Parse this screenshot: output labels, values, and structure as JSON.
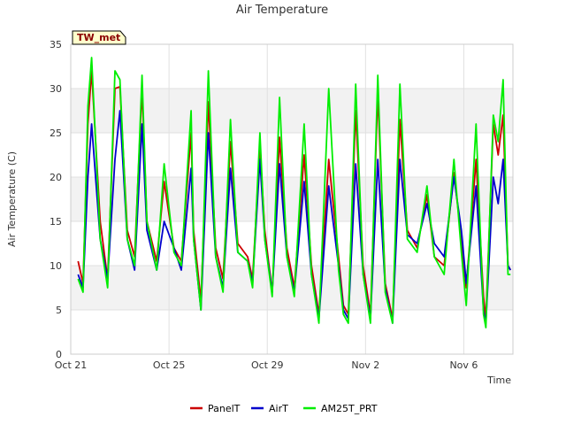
{
  "chart_data": {
    "type": "line",
    "title": "Air Temperature",
    "site_label": "TW_met",
    "xlabel": "Time",
    "ylabel": "Air Temperature (C)",
    "ylim": [
      0,
      35
    ],
    "xlim": [
      "Oct 21",
      "Nov 8"
    ],
    "yticks": [
      0,
      5,
      10,
      15,
      20,
      25,
      30,
      35
    ],
    "xticks": [
      {
        "label": "Oct 21",
        "day": 0
      },
      {
        "label": "Oct 25",
        "day": 4
      },
      {
        "label": "Oct 29",
        "day": 8
      },
      {
        "label": "Nov 2",
        "day": 12
      },
      {
        "label": "Nov 6",
        "day": 16
      }
    ],
    "grid": true,
    "bands": "alternating",
    "legend_position": "bottom",
    "series": [
      {
        "name": "PanelT",
        "color": "#cc0000",
        "points": [
          [
            0.3,
            10.5
          ],
          [
            0.5,
            8.0
          ],
          [
            0.7,
            26.0
          ],
          [
            0.85,
            32.0
          ],
          [
            1.2,
            15.0
          ],
          [
            1.5,
            8.5
          ],
          [
            1.8,
            30.0
          ],
          [
            2.0,
            30.2
          ],
          [
            2.3,
            14.0
          ],
          [
            2.6,
            11.0
          ],
          [
            2.9,
            30.0
          ],
          [
            3.1,
            15.0
          ],
          [
            3.5,
            10.5
          ],
          [
            3.8,
            19.5
          ],
          [
            4.2,
            12.0
          ],
          [
            4.5,
            10.5
          ],
          [
            4.9,
            25.0
          ],
          [
            5.0,
            14.0
          ],
          [
            5.3,
            6.0
          ],
          [
            5.6,
            28.5
          ],
          [
            5.9,
            12.0
          ],
          [
            6.2,
            8.5
          ],
          [
            6.5,
            24.0
          ],
          [
            6.8,
            12.5
          ],
          [
            7.2,
            11.0
          ],
          [
            7.4,
            8.5
          ],
          [
            7.7,
            23.5
          ],
          [
            7.9,
            14.0
          ],
          [
            8.2,
            7.0
          ],
          [
            8.5,
            24.5
          ],
          [
            8.8,
            12.0
          ],
          [
            9.1,
            7.5
          ],
          [
            9.5,
            22.5
          ],
          [
            9.8,
            10.0
          ],
          [
            10.1,
            4.5
          ],
          [
            10.5,
            22.0
          ],
          [
            10.9,
            11.0
          ],
          [
            11.1,
            5.5
          ],
          [
            11.3,
            4.5
          ],
          [
            11.6,
            27.5
          ],
          [
            11.9,
            10.0
          ],
          [
            12.2,
            4.5
          ],
          [
            12.5,
            29.5
          ],
          [
            12.8,
            8.0
          ],
          [
            13.1,
            4.0
          ],
          [
            13.4,
            26.5
          ],
          [
            13.7,
            14.0
          ],
          [
            14.1,
            12.0
          ],
          [
            14.5,
            18.0
          ],
          [
            14.8,
            11.0
          ],
          [
            15.2,
            10.0
          ],
          [
            15.6,
            20.5
          ],
          [
            15.9,
            13.0
          ],
          [
            16.1,
            7.5
          ],
          [
            16.5,
            22.0
          ],
          [
            16.8,
            6.5
          ],
          [
            16.9,
            4.0
          ],
          [
            17.2,
            26.0
          ],
          [
            17.4,
            22.5
          ],
          [
            17.6,
            27.0
          ],
          [
            17.8,
            10.0
          ],
          [
            17.9,
            9.5
          ]
        ]
      },
      {
        "name": "AirT",
        "color": "#0000cc",
        "points": [
          [
            0.3,
            9.0
          ],
          [
            0.5,
            7.5
          ],
          [
            0.7,
            20.0
          ],
          [
            0.85,
            26.0
          ],
          [
            1.2,
            13.0
          ],
          [
            1.5,
            8.5
          ],
          [
            1.8,
            22.0
          ],
          [
            2.0,
            27.5
          ],
          [
            2.3,
            13.0
          ],
          [
            2.6,
            9.5
          ],
          [
            2.9,
            26.0
          ],
          [
            3.1,
            14.0
          ],
          [
            3.5,
            9.5
          ],
          [
            3.8,
            15.0
          ],
          [
            4.2,
            12.0
          ],
          [
            4.5,
            9.5
          ],
          [
            4.9,
            21.0
          ],
          [
            5.0,
            13.0
          ],
          [
            5.3,
            5.0
          ],
          [
            5.6,
            25.0
          ],
          [
            5.9,
            11.0
          ],
          [
            6.2,
            7.5
          ],
          [
            6.5,
            21.0
          ],
          [
            6.8,
            11.5
          ],
          [
            7.2,
            10.5
          ],
          [
            7.4,
            8.0
          ],
          [
            7.7,
            22.0
          ],
          [
            7.9,
            13.0
          ],
          [
            8.2,
            7.0
          ],
          [
            8.5,
            21.5
          ],
          [
            8.8,
            11.0
          ],
          [
            9.1,
            7.0
          ],
          [
            9.5,
            19.5
          ],
          [
            9.8,
            9.0
          ],
          [
            10.1,
            4.0
          ],
          [
            10.5,
            19.0
          ],
          [
            10.9,
            10.0
          ],
          [
            11.1,
            5.0
          ],
          [
            11.3,
            4.0
          ],
          [
            11.6,
            21.5
          ],
          [
            11.9,
            9.0
          ],
          [
            12.2,
            4.0
          ],
          [
            12.5,
            22.0
          ],
          [
            12.8,
            7.5
          ],
          [
            13.1,
            3.5
          ],
          [
            13.4,
            22.0
          ],
          [
            13.7,
            13.5
          ],
          [
            14.1,
            12.5
          ],
          [
            14.5,
            17.0
          ],
          [
            14.8,
            12.5
          ],
          [
            15.2,
            11.0
          ],
          [
            15.6,
            20.0
          ],
          [
            15.9,
            14.0
          ],
          [
            16.1,
            8.0
          ],
          [
            16.5,
            19.0
          ],
          [
            16.8,
            5.0
          ],
          [
            16.9,
            3.5
          ],
          [
            17.2,
            20.0
          ],
          [
            17.4,
            17.0
          ],
          [
            17.6,
            22.0
          ],
          [
            17.8,
            10.0
          ],
          [
            17.9,
            9.5
          ]
        ]
      },
      {
        "name": "AM25T_PRT",
        "color": "#00ee00",
        "points": [
          [
            0.3,
            8.5
          ],
          [
            0.5,
            7.0
          ],
          [
            0.7,
            28.0
          ],
          [
            0.85,
            33.5
          ],
          [
            1.2,
            13.0
          ],
          [
            1.5,
            7.5
          ],
          [
            1.8,
            32.0
          ],
          [
            2.0,
            31.0
          ],
          [
            2.3,
            13.0
          ],
          [
            2.6,
            10.0
          ],
          [
            2.9,
            31.5
          ],
          [
            3.1,
            15.0
          ],
          [
            3.5,
            9.5
          ],
          [
            3.8,
            21.5
          ],
          [
            4.2,
            11.5
          ],
          [
            4.5,
            10.0
          ],
          [
            4.9,
            27.5
          ],
          [
            5.0,
            13.0
          ],
          [
            5.3,
            5.0
          ],
          [
            5.6,
            32.0
          ],
          [
            5.9,
            11.0
          ],
          [
            6.2,
            7.0
          ],
          [
            6.5,
            26.5
          ],
          [
            6.8,
            11.5
          ],
          [
            7.2,
            10.5
          ],
          [
            7.4,
            7.5
          ],
          [
            7.7,
            25.0
          ],
          [
            7.9,
            13.0
          ],
          [
            8.2,
            6.5
          ],
          [
            8.5,
            29.0
          ],
          [
            8.8,
            11.0
          ],
          [
            9.1,
            6.5
          ],
          [
            9.5,
            26.0
          ],
          [
            9.8,
            9.0
          ],
          [
            10.1,
            3.5
          ],
          [
            10.5,
            30.0
          ],
          [
            10.9,
            9.5
          ],
          [
            11.1,
            4.5
          ],
          [
            11.3,
            3.5
          ],
          [
            11.6,
            30.5
          ],
          [
            11.9,
            9.0
          ],
          [
            12.2,
            3.5
          ],
          [
            12.5,
            31.5
          ],
          [
            12.8,
            7.0
          ],
          [
            13.1,
            3.5
          ],
          [
            13.4,
            30.5
          ],
          [
            13.7,
            13.0
          ],
          [
            14.1,
            11.5
          ],
          [
            14.5,
            19.0
          ],
          [
            14.8,
            11.0
          ],
          [
            15.2,
            9.0
          ],
          [
            15.6,
            22.0
          ],
          [
            15.9,
            11.5
          ],
          [
            16.1,
            5.5
          ],
          [
            16.5,
            26.0
          ],
          [
            16.8,
            4.5
          ],
          [
            16.9,
            3.0
          ],
          [
            17.2,
            27.0
          ],
          [
            17.4,
            24.0
          ],
          [
            17.6,
            31.0
          ],
          [
            17.8,
            9.0
          ],
          [
            17.9,
            9.0
          ]
        ]
      }
    ]
  }
}
